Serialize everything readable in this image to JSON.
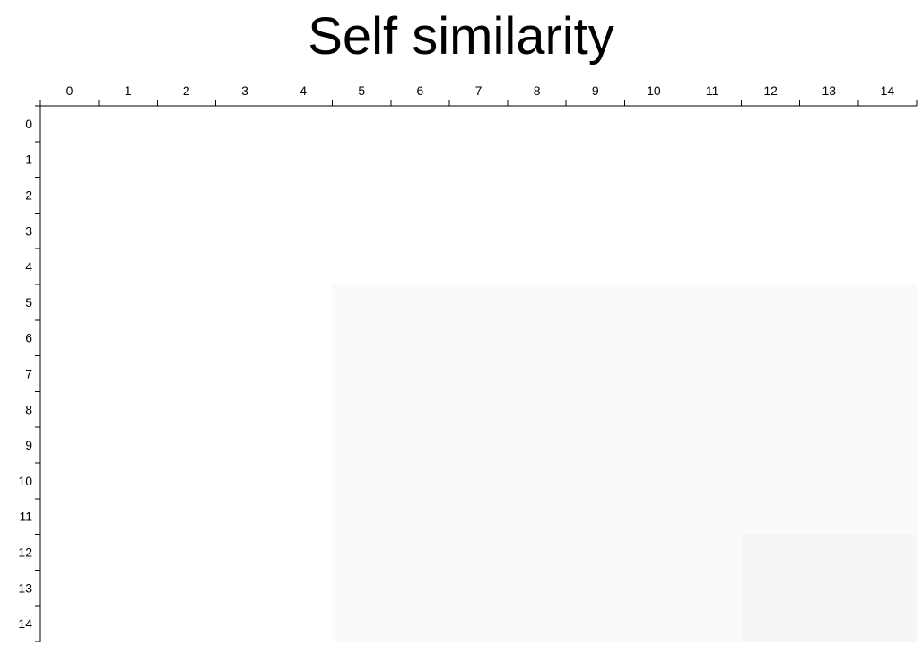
{
  "chart_data": {
    "type": "heatmap",
    "title": "Self similarity",
    "x_categories": [
      "0",
      "1",
      "2",
      "3",
      "4",
      "5",
      "6",
      "7",
      "8",
      "9",
      "10",
      "11",
      "12",
      "13",
      "14"
    ],
    "y_categories": [
      "0",
      "1",
      "2",
      "3",
      "4",
      "5",
      "6",
      "7",
      "8",
      "9",
      "10",
      "11",
      "12",
      "13",
      "14"
    ],
    "x_axis_position": "top",
    "y_axis_position": "left",
    "grid": false,
    "legend": "none",
    "color_scale": {
      "low": "#ffffff",
      "high": "#f5f5f5"
    },
    "values": [
      [
        0,
        0,
        0,
        0,
        0,
        0,
        0,
        0,
        0,
        0,
        0,
        0,
        0,
        0,
        0
      ],
      [
        0,
        0,
        0,
        0,
        0,
        0,
        0,
        0,
        0,
        0,
        0,
        0,
        0,
        0,
        0
      ],
      [
        0,
        0,
        0,
        0,
        0,
        0,
        0,
        0,
        0,
        0,
        0,
        0,
        0,
        0,
        0
      ],
      [
        0,
        0,
        0,
        0,
        0,
        0,
        0,
        0,
        0,
        0,
        0,
        0,
        0,
        0,
        0
      ],
      [
        0,
        0,
        0,
        0,
        0,
        0,
        0,
        0,
        0,
        0,
        0,
        0,
        0,
        0,
        0
      ],
      [
        0,
        0,
        0,
        0,
        0,
        1,
        1,
        1,
        1,
        1,
        1,
        1,
        1,
        1,
        1
      ],
      [
        0,
        0,
        0,
        0,
        0,
        1,
        1,
        1,
        1,
        1,
        1,
        1,
        1,
        1,
        1
      ],
      [
        0,
        0,
        0,
        0,
        0,
        1,
        1,
        1,
        1,
        1,
        1,
        1,
        1,
        1,
        1
      ],
      [
        0,
        0,
        0,
        0,
        0,
        1,
        1,
        1,
        1,
        1,
        1,
        1,
        1,
        1,
        1
      ],
      [
        0,
        0,
        0,
        0,
        0,
        1,
        1,
        1,
        1,
        1,
        1,
        1,
        1,
        1,
        1
      ],
      [
        0,
        0,
        0,
        0,
        0,
        1,
        1,
        1,
        1,
        1,
        1,
        1,
        1,
        1,
        1
      ],
      [
        0,
        0,
        0,
        0,
        0,
        1,
        1,
        1,
        1,
        1,
        1,
        1,
        1,
        1,
        1
      ],
      [
        0,
        0,
        0,
        0,
        0,
        1,
        1,
        1,
        1,
        1,
        1,
        1,
        2,
        2,
        2
      ],
      [
        0,
        0,
        0,
        0,
        0,
        1,
        1,
        1,
        1,
        1,
        1,
        1,
        2,
        2,
        2
      ],
      [
        0,
        0,
        0,
        0,
        0,
        1,
        1,
        1,
        1,
        1,
        1,
        1,
        2,
        2,
        2
      ]
    ],
    "value_range": [
      0,
      2
    ]
  }
}
